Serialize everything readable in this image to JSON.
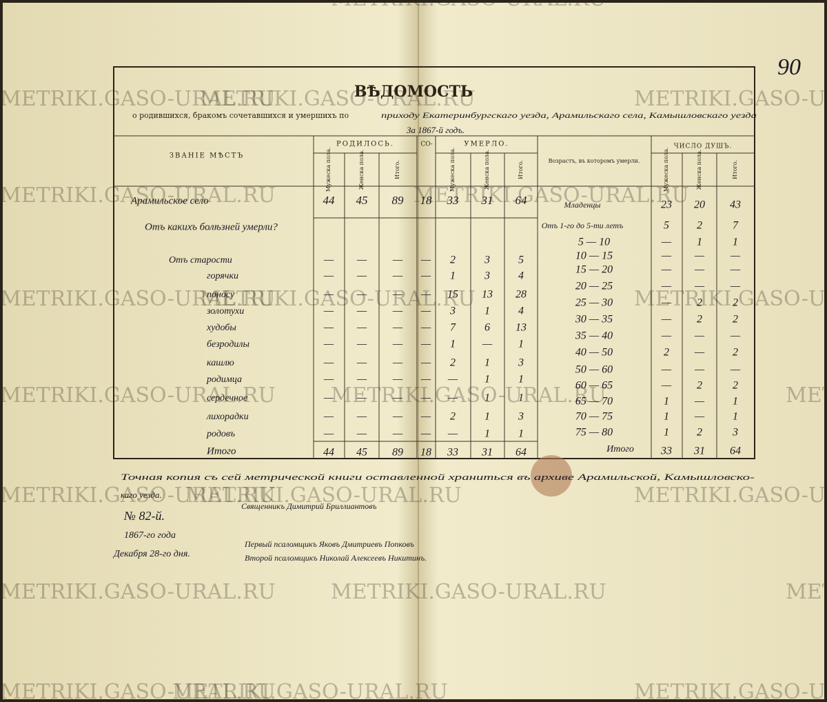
{
  "page_number": "90",
  "watermark": "METRIKI.GASO-URAL.RU",
  "header": {
    "title": "ВѢДОМОСТЬ",
    "subtitle": "о родившихся, бракомъ сочетавшихся и умершихъ по",
    "handwritten": "приходу Екатеринбургскаго уезда, Арамильскаго села, Камышловскаго уезда",
    "year": "За 1867-й годъ."
  },
  "columns": {
    "place": "ЗВАНІЕ МѢСТЪ",
    "born": "РОДИЛОСЬ.",
    "married": "СО-",
    "died": "УМЕРЛО.",
    "age": "Возрастъ, въ которомъ умерли.",
    "souls": "ЧИСЛО ДУШЪ.",
    "male": "Мужеска пола.",
    "female": "Женска пола.",
    "total": "Итого."
  },
  "table": {
    "place": {
      "label": "Арамильское село",
      "values": [
        "44",
        "45",
        "89",
        "18",
        "33",
        "31",
        "64"
      ]
    },
    "causes_title": "Отъ какихъ болѣзней умерли?",
    "causes": [
      {
        "label": "Отъ старости",
        "values": [
          "—",
          "—",
          "—",
          "—",
          "2",
          "3",
          "5"
        ]
      },
      {
        "label": "горячки",
        "values": [
          "—",
          "—",
          "—",
          "—",
          "1",
          "3",
          "4"
        ]
      },
      {
        "label": "поносу",
        "values": [
          "—",
          "—",
          "—",
          "—",
          "15",
          "13",
          "28"
        ]
      },
      {
        "label": "золотухи",
        "values": [
          "—",
          "—",
          "—",
          "—",
          "3",
          "1",
          "4"
        ]
      },
      {
        "label": "худобы",
        "values": [
          "—",
          "—",
          "—",
          "—",
          "7",
          "6",
          "13"
        ]
      },
      {
        "label": "безродилы",
        "values": [
          "—",
          "—",
          "—",
          "—",
          "1",
          "—",
          "1"
        ]
      },
      {
        "label": "кашлю",
        "values": [
          "—",
          "—",
          "—",
          "—",
          "2",
          "1",
          "3"
        ]
      },
      {
        "label": "родимца",
        "values": [
          "—",
          "—",
          "—",
          "—",
          "—",
          "1",
          "1"
        ]
      },
      {
        "label": "сердечное",
        "values": [
          "—",
          "—",
          "—",
          "—",
          "—",
          "1",
          "1"
        ]
      },
      {
        "label": "лихорадки",
        "values": [
          "—",
          "—",
          "—",
          "—",
          "2",
          "1",
          "3"
        ]
      },
      {
        "label": "родовъ",
        "values": [
          "—",
          "—",
          "—",
          "—",
          "—",
          "1",
          "1"
        ]
      }
    ],
    "total": {
      "label": "Итого",
      "values": [
        "44",
        "45",
        "89",
        "18",
        "33",
        "31",
        "64"
      ]
    },
    "ages": [
      {
        "label": "Младенцы",
        "values": [
          "23",
          "20",
          "43"
        ]
      },
      {
        "label": "Отъ 1-го до 5-ти летъ",
        "values": [
          "5",
          "2",
          "7"
        ]
      },
      {
        "label": "5 — 10",
        "values": [
          "—",
          "1",
          "1"
        ]
      },
      {
        "label": "10 — 15",
        "values": [
          "—",
          "—",
          "—"
        ]
      },
      {
        "label": "15 — 20",
        "values": [
          "—",
          "—",
          "—"
        ]
      },
      {
        "label": "20 — 25",
        "values": [
          "—",
          "—",
          "—"
        ]
      },
      {
        "label": "25 — 30",
        "values": [
          "—",
          "2",
          "2"
        ]
      },
      {
        "label": "30 — 35",
        "values": [
          "—",
          "2",
          "2"
        ]
      },
      {
        "label": "35 — 40",
        "values": [
          "—",
          "—",
          "—"
        ]
      },
      {
        "label": "40 — 50",
        "values": [
          "2",
          "—",
          "2"
        ]
      },
      {
        "label": "50 — 60",
        "values": [
          "—",
          "—",
          "—"
        ]
      },
      {
        "label": "60 — 65",
        "values": [
          "—",
          "2",
          "2"
        ]
      },
      {
        "label": "65 — 70",
        "values": [
          "1",
          "—",
          "1"
        ]
      },
      {
        "label": "70 — 75",
        "values": [
          "1",
          "—",
          "1"
        ]
      },
      {
        "label": "75 — 80",
        "values": [
          "1",
          "2",
          "3"
        ]
      }
    ],
    "ages_total": {
      "label": "Итого",
      "values": [
        "33",
        "31",
        "64"
      ]
    }
  },
  "footer": {
    "copy_note": "Точная копия съ сей метрической книги оставленной храниться въ архиве Арамильской, Камышловско-",
    "copy_note_end": "каго уезда.",
    "number": "№ 82-й.",
    "year": "1867-го года",
    "date": "Декабря 28-го дня.",
    "priest": "Священникъ Димитрий Бриллиантовъ",
    "clerk1": "Первый псаломщикъ Яковъ Дмитриевъ Попковъ",
    "clerk2": "Второй псаломщикъ Николай Алексеевъ Никитинъ."
  }
}
